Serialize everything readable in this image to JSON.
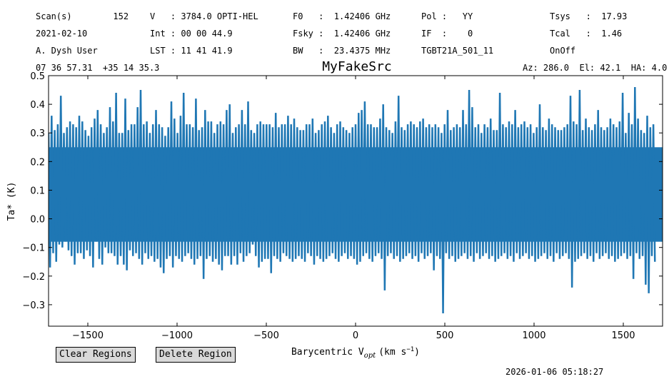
{
  "header": {
    "rows": [
      [
        {
          "id": "scan",
          "text": "Scan(s)        152"
        },
        {
          "id": "vel",
          "text": "V   : 3784.0 OPTI-HEL"
        },
        {
          "id": "f0",
          "text": "F0   :  1.42406 GHz"
        },
        {
          "id": "pol",
          "text": "Pol :   YY"
        },
        {
          "id": "tsys",
          "text": "Tsys   :  17.93"
        }
      ],
      [
        {
          "id": "date",
          "text": "2021-02-10"
        },
        {
          "id": "int",
          "text": "Int : 00 00 44.9"
        },
        {
          "id": "fsky",
          "text": "Fsky :  1.42406 GHz"
        },
        {
          "id": "if",
          "text": "IF  :    0"
        },
        {
          "id": "tcal",
          "text": "Tcal   :  1.46"
        }
      ],
      [
        {
          "id": "observer",
          "text": "A. Dysh User"
        },
        {
          "id": "lst",
          "text": "LST : 11 41 41.9"
        },
        {
          "id": "bw",
          "text": "BW   :  23.4375 MHz"
        },
        {
          "id": "project",
          "text": "TGBT21A_501_11"
        },
        {
          "id": "procedure",
          "text": "OnOff"
        }
      ]
    ],
    "coords": "07 36 57.31  +35 14 35.3",
    "azel": "Az: 286.0  El: 42.1  HA: 4.0"
  },
  "buttons": {
    "clear_regions": "Clear Regions",
    "delete_region": "Delete Region"
  },
  "timestamp": "2026-01-06 05:18:27",
  "chart_data": {
    "type": "line",
    "title": "MyFakeSrc",
    "xlabel": "Barycentric V",
    "xlabel_sub": "opt",
    "xlabel_unit_open": "(km s",
    "xlabel_unit_sup": "−1",
    "xlabel_unit_close": ")",
    "ylabel": "Ta* (K)",
    "xlim": [
      -1720,
      1720
    ],
    "ylim": [
      -0.375,
      0.5
    ],
    "xticks": [
      -1500,
      -1000,
      -500,
      0,
      500,
      1000,
      1500
    ],
    "xtick_labels": [
      "−1500",
      "−1000",
      "−500",
      "0",
      "500",
      "1000",
      "1500"
    ],
    "yticks": [
      -0.3,
      -0.2,
      -0.1,
      0.0,
      0.1,
      0.2,
      0.3,
      0.4,
      0.5
    ],
    "ytick_labels": [
      "−0.3",
      "−0.2",
      "−0.1",
      "0.0",
      "0.1",
      "0.2",
      "0.3",
      "0.4",
      "0.5"
    ],
    "grid": false,
    "line_color": "#1f77b4",
    "series": [
      {
        "x_start": -1720,
        "x_end": 1720,
        "x_step": 17.2,
        "y_max": [
          0.3,
          0.36,
          0.31,
          0.33,
          0.43,
          0.3,
          0.32,
          0.34,
          0.33,
          0.32,
          0.36,
          0.34,
          0.31,
          0.29,
          0.32,
          0.35,
          0.38,
          0.33,
          0.3,
          0.32,
          0.39,
          0.34,
          0.44,
          0.3,
          0.3,
          0.42,
          0.31,
          0.33,
          0.33,
          0.39,
          0.45,
          0.33,
          0.34,
          0.3,
          0.33,
          0.38,
          0.33,
          0.32,
          0.29,
          0.32,
          0.41,
          0.35,
          0.3,
          0.36,
          0.44,
          0.33,
          0.33,
          0.32,
          0.42,
          0.31,
          0.32,
          0.38,
          0.34,
          0.34,
          0.3,
          0.33,
          0.34,
          0.33,
          0.38,
          0.4,
          0.3,
          0.32,
          0.33,
          0.38,
          0.33,
          0.41,
          0.31,
          0.3,
          0.33,
          0.34,
          0.33,
          0.33,
          0.33,
          0.32,
          0.37,
          0.32,
          0.33,
          0.33,
          0.36,
          0.33,
          0.35,
          0.32,
          0.31,
          0.31,
          0.33,
          0.33,
          0.35,
          0.3,
          0.31,
          0.33,
          0.34,
          0.36,
          0.32,
          0.3,
          0.33,
          0.34,
          0.32,
          0.31,
          0.3,
          0.32,
          0.33,
          0.37,
          0.38,
          0.41,
          0.33,
          0.33,
          0.32,
          0.32,
          0.35,
          0.4,
          0.32,
          0.31,
          0.3,
          0.34,
          0.43,
          0.32,
          0.31,
          0.33,
          0.34,
          0.33,
          0.32,
          0.34,
          0.35,
          0.32,
          0.33,
          0.32,
          0.33,
          0.32,
          0.3,
          0.33,
          0.38,
          0.31,
          0.32,
          0.33,
          0.32,
          0.38,
          0.33,
          0.45,
          0.39,
          0.32,
          0.33,
          0.3,
          0.33,
          0.32,
          0.35,
          0.31,
          0.31,
          0.44,
          0.33,
          0.32,
          0.34,
          0.33,
          0.38,
          0.32,
          0.33,
          0.34,
          0.32,
          0.33,
          0.3,
          0.32,
          0.4,
          0.32,
          0.31,
          0.35,
          0.33,
          0.32,
          0.31,
          0.31,
          0.32,
          0.33,
          0.43,
          0.34,
          0.33,
          0.45,
          0.31,
          0.35,
          0.32,
          0.31,
          0.33,
          0.38,
          0.32,
          0.31,
          0.32,
          0.35,
          0.33,
          0.32,
          0.34,
          0.44,
          0.3,
          0.37,
          0.33,
          0.46,
          0.35,
          0.31,
          0.3,
          0.36,
          0.32,
          0.33
        ],
        "y_min": [
          -0.17,
          -0.12,
          -0.15,
          -0.09,
          -0.1,
          -0.08,
          -0.11,
          -0.13,
          -0.16,
          -0.12,
          -0.12,
          -0.14,
          -0.11,
          -0.13,
          -0.17,
          -0.08,
          -0.14,
          -0.16,
          -0.1,
          -0.12,
          -0.12,
          -0.13,
          -0.16,
          -0.13,
          -0.16,
          -0.18,
          -0.11,
          -0.13,
          -0.12,
          -0.14,
          -0.16,
          -0.12,
          -0.14,
          -0.13,
          -0.15,
          -0.14,
          -0.17,
          -0.19,
          -0.14,
          -0.13,
          -0.17,
          -0.13,
          -0.14,
          -0.15,
          -0.13,
          -0.12,
          -0.14,
          -0.16,
          -0.14,
          -0.13,
          -0.21,
          -0.14,
          -0.13,
          -0.15,
          -0.14,
          -0.16,
          -0.18,
          -0.13,
          -0.13,
          -0.16,
          -0.13,
          -0.16,
          -0.12,
          -0.15,
          -0.13,
          -0.12,
          -0.09,
          -0.13,
          -0.17,
          -0.15,
          -0.14,
          -0.14,
          -0.19,
          -0.13,
          -0.14,
          -0.15,
          -0.12,
          -0.13,
          -0.14,
          -0.15,
          -0.14,
          -0.13,
          -0.14,
          -0.15,
          -0.12,
          -0.13,
          -0.16,
          -0.13,
          -0.14,
          -0.15,
          -0.14,
          -0.13,
          -0.12,
          -0.14,
          -0.15,
          -0.13,
          -0.12,
          -0.14,
          -0.13,
          -0.14,
          -0.16,
          -0.15,
          -0.13,
          -0.12,
          -0.14,
          -0.15,
          -0.13,
          -0.12,
          -0.14,
          -0.25,
          -0.13,
          -0.12,
          -0.14,
          -0.13,
          -0.15,
          -0.14,
          -0.13,
          -0.12,
          -0.14,
          -0.13,
          -0.15,
          -0.12,
          -0.14,
          -0.13,
          -0.12,
          -0.18,
          -0.13,
          -0.14,
          -0.33,
          -0.12,
          -0.14,
          -0.13,
          -0.15,
          -0.14,
          -0.13,
          -0.12,
          -0.14,
          -0.13,
          -0.15,
          -0.12,
          -0.14,
          -0.13,
          -0.12,
          -0.14,
          -0.13,
          -0.15,
          -0.14,
          -0.13,
          -0.12,
          -0.14,
          -0.13,
          -0.15,
          -0.12,
          -0.14,
          -0.13,
          -0.12,
          -0.14,
          -0.13,
          -0.15,
          -0.14,
          -0.13,
          -0.12,
          -0.14,
          -0.13,
          -0.15,
          -0.12,
          -0.14,
          -0.13,
          -0.12,
          -0.14,
          -0.24,
          -0.15,
          -0.14,
          -0.13,
          -0.12,
          -0.14,
          -0.13,
          -0.15,
          -0.12,
          -0.14,
          -0.13,
          -0.12,
          -0.14,
          -0.13,
          -0.15,
          -0.14,
          -0.13,
          -0.12,
          -0.14,
          -0.13,
          -0.21,
          -0.12,
          -0.14,
          -0.13,
          -0.23,
          -0.26,
          -0.13,
          -0.15,
          -0.14
        ]
      }
    ]
  }
}
